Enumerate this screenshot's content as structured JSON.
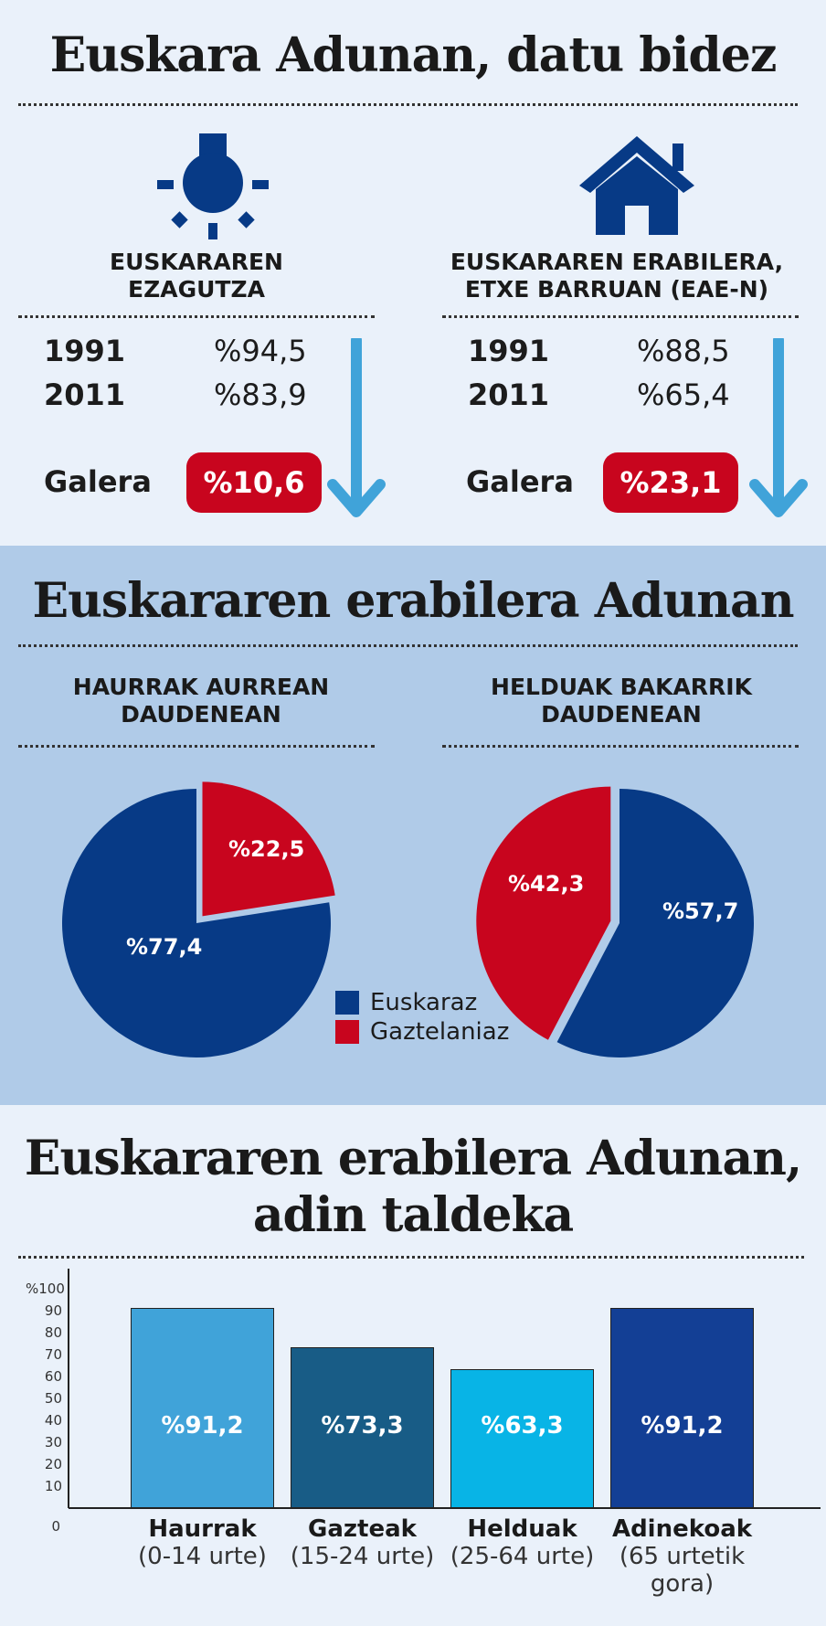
{
  "colors": {
    "navy": "#073a86",
    "red": "#c8051e",
    "arrow_blue": "#40a3d9",
    "bar1": "#40a3d9",
    "bar2": "#185c86",
    "bar3": "#08b4e6",
    "bar4": "#133f95"
  },
  "section1": {
    "title": "Euskara Adunan, datu bidez",
    "left": {
      "icon": "lightbulb-icon",
      "heading_line1": "EUSKARAREN",
      "heading_line2": "EZAGUTZA",
      "rows": [
        {
          "year": "1991",
          "value": "%94,5"
        },
        {
          "year": "2011",
          "value": "%83,9"
        }
      ],
      "loss_label": "Galera",
      "loss_value": "%10,6"
    },
    "right": {
      "icon": "house-icon",
      "heading_line1": "EUSKARAREN ERABILERA,",
      "heading_line2": "ETXE BARRUAN (EAE-N)",
      "rows": [
        {
          "year": "1991",
          "value": "%88,5"
        },
        {
          "year": "2011",
          "value": "%65,4"
        }
      ],
      "loss_label": "Galera",
      "loss_value": "%23,1"
    }
  },
  "section2": {
    "title": "Euskararen erabilera Adunan",
    "legend": [
      {
        "label": "Euskaraz",
        "color": "#073a86"
      },
      {
        "label": "Gaztelaniaz",
        "color": "#c8051e"
      }
    ]
  },
  "section3": {
    "title_line1": "Euskararen erabilera Adunan,",
    "title_line2": "adin taldeka"
  },
  "chart_data": [
    {
      "type": "pie",
      "title": "HAURRAK AURREAN DAUDENEAN",
      "title_line1": "HAURRAK AURREAN",
      "title_line2": "DAUDENEAN",
      "slices": [
        {
          "label": "Euskaraz",
          "value": 77.4,
          "display": "%77,4"
        },
        {
          "label": "Gaztelaniaz",
          "value": 22.5,
          "display": "%22,5"
        }
      ]
    },
    {
      "type": "pie",
      "title": "HELDUAK BAKARRIK DAUDENEAN",
      "title_line1": "HELDUAK BAKARRIK",
      "title_line2": "DAUDENEAN",
      "slices": [
        {
          "label": "Euskaraz",
          "value": 57.7,
          "display": "%57,7"
        },
        {
          "label": "Gaztelaniaz",
          "value": 42.3,
          "display": "%42,3"
        }
      ]
    },
    {
      "type": "bar",
      "title": "Euskararen erabilera Adunan, adin taldeka",
      "categories": [
        {
          "name": "Haurrak",
          "range": "(0-14 urte)"
        },
        {
          "name": "Gazteak",
          "range": "(15-24 urte)"
        },
        {
          "name": "Helduak",
          "range": "(25-64 urte)"
        },
        {
          "name": "Adinekoak",
          "range": "(65 urtetik gora)"
        }
      ],
      "values": [
        91.2,
        73.3,
        63.3,
        91.2
      ],
      "value_labels": [
        "%91,2",
        "%73,3",
        "%63,3",
        "%91,2"
      ],
      "ylim": [
        0,
        100
      ],
      "yticks": [
        "0",
        "10",
        "20",
        "30",
        "40",
        "50",
        "60",
        "70",
        "80",
        "90",
        "%100"
      ],
      "grid": false
    }
  ]
}
